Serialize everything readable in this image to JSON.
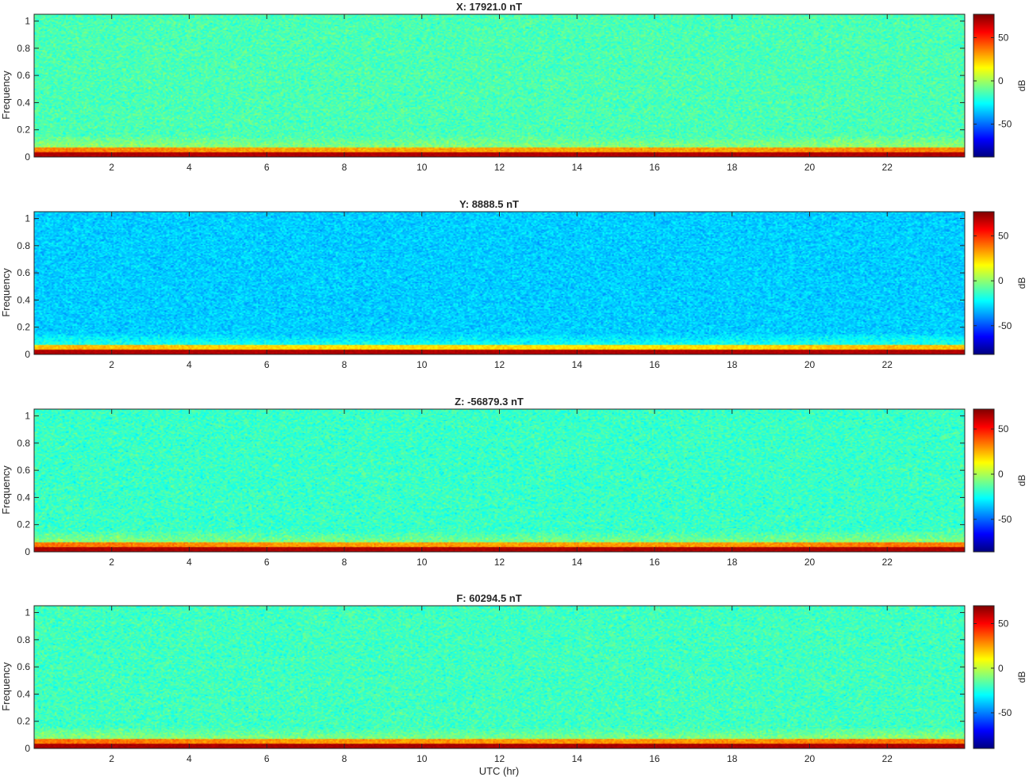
{
  "figure": {
    "xlabel": "UTC (hr)"
  },
  "chart_data": [
    {
      "type": "heatmap",
      "title": "X: 17921.0 nT",
      "ylabel": "Frequency",
      "xlim": [
        0,
        24
      ],
      "ylim": [
        0,
        1.05
      ],
      "xticks": [
        2,
        4,
        6,
        8,
        10,
        12,
        14,
        16,
        18,
        20,
        22
      ],
      "yticks": [
        0,
        0.2,
        0.4,
        0.6,
        0.8,
        1
      ],
      "colorbar": {
        "label": "dB",
        "ticks": [
          50,
          0,
          -50
        ],
        "range": [
          -88,
          77
        ],
        "colormap": "jet"
      },
      "background_level_db": -14,
      "noise_db": 13,
      "low_freq_band_db": 30,
      "dc_line_db": 72
    },
    {
      "type": "heatmap",
      "title": "Y: 8888.5 nT",
      "ylabel": "Frequency",
      "xlim": [
        0,
        24
      ],
      "ylim": [
        0,
        1.05
      ],
      "xticks": [
        2,
        4,
        6,
        8,
        10,
        12,
        14,
        16,
        18,
        20,
        22
      ],
      "yticks": [
        0,
        0.2,
        0.4,
        0.6,
        0.8,
        1
      ],
      "colorbar": {
        "label": "dB",
        "ticks": [
          50,
          0,
          -50
        ],
        "range": [
          -82,
          77
        ],
        "colormap": "jet"
      },
      "background_level_db": -30,
      "noise_db": 12,
      "low_freq_band_db": 22,
      "dc_line_db": 72
    },
    {
      "type": "heatmap",
      "title": "Z: -56879.3 nT",
      "ylabel": "Frequency",
      "xlim": [
        0,
        24
      ],
      "ylim": [
        0,
        1.05
      ],
      "xticks": [
        2,
        4,
        6,
        8,
        10,
        12,
        14,
        16,
        18,
        20,
        22
      ],
      "yticks": [
        0,
        0.2,
        0.4,
        0.6,
        0.8,
        1
      ],
      "colorbar": {
        "label": "dB",
        "ticks": [
          50,
          0,
          -50
        ],
        "range": [
          -86,
          72
        ],
        "colormap": "jet"
      },
      "background_level_db": -18,
      "noise_db": 13,
      "low_freq_band_db": 28,
      "dc_line_db": 68
    },
    {
      "type": "heatmap",
      "title": "F: 60294.5 nT",
      "ylabel": "Frequency",
      "xlim": [
        0,
        24
      ],
      "ylim": [
        0,
        1.05
      ],
      "xticks": [
        2,
        4,
        6,
        8,
        10,
        12,
        14,
        16,
        18,
        20,
        22
      ],
      "yticks": [
        0,
        0.2,
        0.4,
        0.6,
        0.8,
        1
      ],
      "colorbar": {
        "label": "dB",
        "ticks": [
          50,
          0,
          -50
        ],
        "range": [
          -90,
          70
        ],
        "colormap": "jet"
      },
      "background_level_db": -20,
      "noise_db": 13,
      "low_freq_band_db": 26,
      "dc_line_db": 66
    }
  ]
}
